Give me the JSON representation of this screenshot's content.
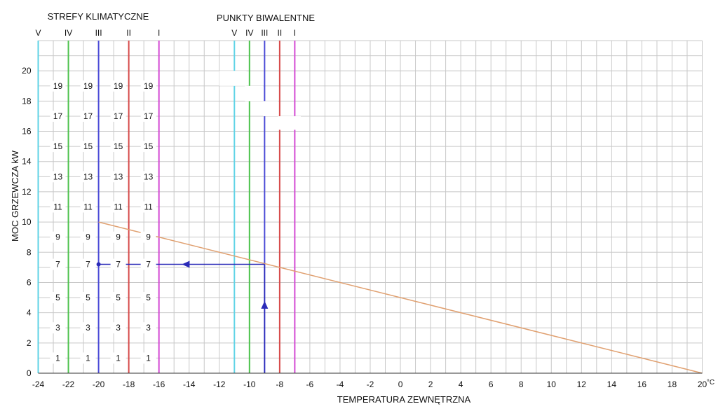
{
  "chart_data": {
    "type": "line",
    "title_left": "STREFY KLIMATYCZNE",
    "title_right": "PUNKTY BIWALENTNE",
    "xlabel": "TEMPERATURA ZEWNĘTRZNA",
    "ylabel": "MOC GRZEWCZA  kW",
    "x_unit": "°C",
    "xlim": [
      -24,
      20
    ],
    "ylim": [
      0,
      22
    ],
    "x_ticks": [
      -24,
      -22,
      -20,
      -18,
      -16,
      -14,
      -12,
      -10,
      -8,
      -6,
      -4,
      -2,
      0,
      2,
      4,
      6,
      8,
      10,
      12,
      14,
      16,
      18,
      20
    ],
    "y_ticks": [
      0,
      2,
      4,
      6,
      8,
      10,
      12,
      14,
      16,
      18,
      20
    ],
    "grid": true,
    "climate_zones": [
      {
        "label": "V",
        "x": -24,
        "color": "#5fd3e6"
      },
      {
        "label": "IV",
        "x": -22,
        "color": "#4cc24c"
      },
      {
        "label": "III",
        "x": -20,
        "color": "#4a4ad6"
      },
      {
        "label": "II",
        "x": -18,
        "color": "#d64a4a"
      },
      {
        "label": "I",
        "x": -16,
        "color": "#d44ad4"
      }
    ],
    "bivalent_points": [
      {
        "label": "V",
        "x": -11,
        "color": "#5fd3e6"
      },
      {
        "label": "IV",
        "x": -10,
        "color": "#4cc24c"
      },
      {
        "label": "III",
        "x": -9,
        "color": "#4a4ad6"
      },
      {
        "label": "II",
        "x": -8,
        "color": "#d64a4a"
      },
      {
        "label": "I",
        "x": -7,
        "color": "#d44ad4"
      }
    ],
    "zone_value_columns": [
      -22,
      -20,
      -18,
      -16
    ],
    "zone_values": [
      {
        "label": "1",
        "y": 1
      },
      {
        "label": "3",
        "y": 3
      },
      {
        "label": "5",
        "y": 5
      },
      {
        "label": "7",
        "y": 7.2
      },
      {
        "label": "9",
        "y": 9
      },
      {
        "label": "11",
        "y": 11
      },
      {
        "label": "13",
        "y": 13
      },
      {
        "label": "15",
        "y": 15
      },
      {
        "label": "17",
        "y": 17
      },
      {
        "label": "19",
        "y": 19
      }
    ],
    "series": [
      {
        "x": [
          -20,
          20
        ],
        "y": [
          10,
          0
        ],
        "color": "#e0a070"
      }
    ],
    "readout": {
      "x": -9,
      "y": 7.2,
      "to_x": -20,
      "color": "#2a2ab8",
      "arrow_up_at_y": 4.5,
      "arrow_left_at_x": -14.2
    }
  }
}
